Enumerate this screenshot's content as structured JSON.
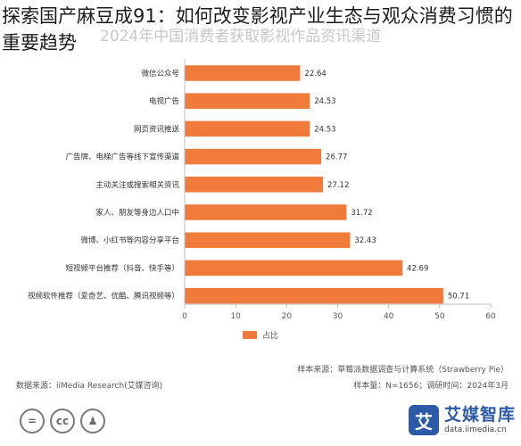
{
  "headline": "探索国产麻豆成91：如何改变影视产业生态与观众消费习惯的重要趋势",
  "faded_title": "2024年中国消费者获取影视作品资讯渠道",
  "chart_data": {
    "type": "bar",
    "orientation": "horizontal",
    "title": "2024年中国消费者获取影视作品资讯渠道",
    "categories": [
      "微信公众号",
      "电视广告",
      "网页资讯推送",
      "广告牌、电梯广告等线下宣传渠道",
      "主动关注或搜索相关资讯",
      "家人、朋友等身边人口中",
      "微博、小红书等内容分享平台",
      "短视频平台推荐（抖音、快手等）",
      "视频软件推荐（爱奇艺、优酷、腾讯视频等）"
    ],
    "series": [
      {
        "name": "占比",
        "values": [
          22.64,
          24.53,
          24.53,
          26.77,
          27.12,
          31.72,
          32.43,
          42.69,
          50.71
        ]
      }
    ],
    "value_labels": [
      "22.64",
      "24.53",
      "24.53",
      "26.77",
      "27.12",
      "31.72",
      "32.43",
      "42.69",
      "50.71"
    ],
    "xlim": [
      0,
      60
    ],
    "xticks": [
      0,
      10,
      20,
      30,
      40,
      50,
      60
    ],
    "xtick_labels": [
      "0",
      "10",
      "20",
      "30",
      "40",
      "50",
      "60"
    ],
    "grid": false,
    "legend": "bottom",
    "bar_color": "#f07a3a"
  },
  "legend_label": "占比",
  "notes": {
    "sample_source": "样本来源：草莓派数据调查与计算系统（Strawberry Pie）",
    "data_source": "数据来源：iiMedia Research(艾媒咨询)",
    "sample_size": "样本量：N=1656；调研时间：2024年3月"
  },
  "footer_icons": [
    {
      "name": "equal-icon",
      "glyph": "="
    },
    {
      "name": "cc-icon",
      "glyph": "cc"
    },
    {
      "name": "person-icon",
      "glyph": "♟"
    }
  ],
  "brand": {
    "mark": "艾",
    "name": "艾媒智库",
    "url": "data.iimedia.cn",
    "color": "#2c5aa6"
  }
}
